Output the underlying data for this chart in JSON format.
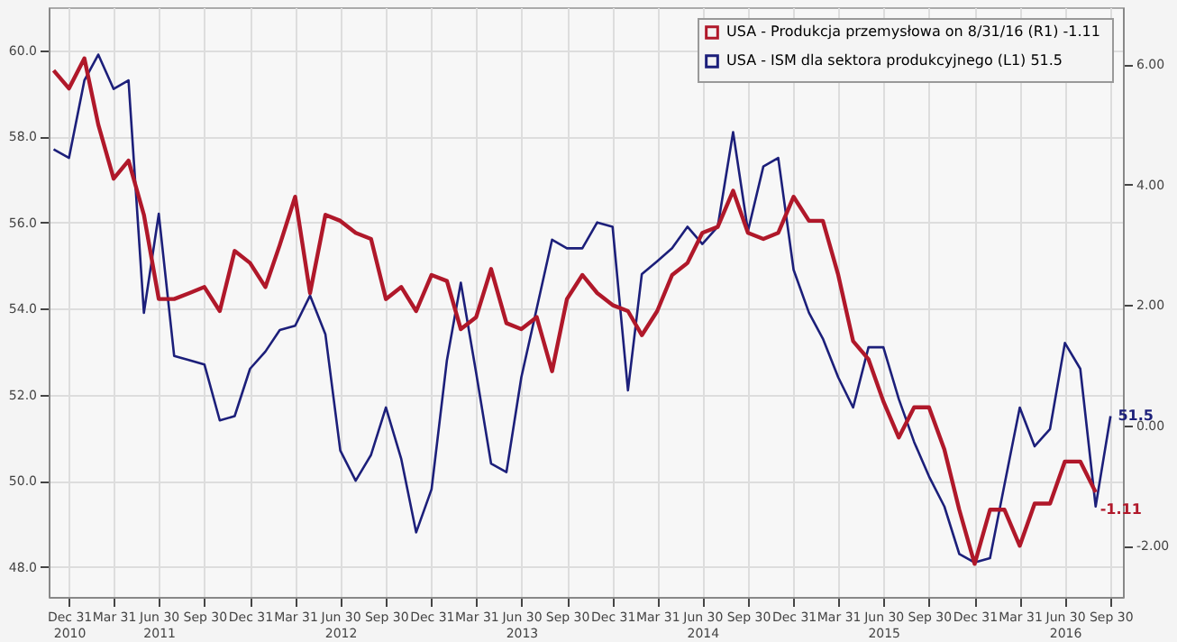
{
  "chart_data": {
    "type": "line",
    "x": [
      "2010-11-30",
      "2010-12-31",
      "2011-01-31",
      "2011-02-28",
      "2011-03-31",
      "2011-04-30",
      "2011-05-31",
      "2011-06-30",
      "2011-07-31",
      "2011-08-31",
      "2011-09-30",
      "2011-10-31",
      "2011-11-30",
      "2011-12-31",
      "2012-01-31",
      "2012-02-29",
      "2012-03-31",
      "2012-04-30",
      "2012-05-31",
      "2012-06-30",
      "2012-07-31",
      "2012-08-31",
      "2012-09-30",
      "2012-10-31",
      "2012-11-30",
      "2012-12-31",
      "2013-01-31",
      "2013-02-28",
      "2013-03-31",
      "2013-04-30",
      "2013-05-31",
      "2013-06-30",
      "2013-07-31",
      "2013-08-31",
      "2013-09-30",
      "2013-10-31",
      "2013-11-30",
      "2013-12-31",
      "2014-01-31",
      "2014-02-28",
      "2014-03-31",
      "2014-04-30",
      "2014-05-31",
      "2014-06-30",
      "2014-07-31",
      "2014-08-31",
      "2014-09-30",
      "2014-10-31",
      "2014-11-30",
      "2014-12-31",
      "2015-01-31",
      "2015-02-28",
      "2015-03-31",
      "2015-04-30",
      "2015-05-31",
      "2015-06-30",
      "2015-07-31",
      "2015-08-31",
      "2015-09-30",
      "2015-10-31",
      "2015-11-30",
      "2015-12-31",
      "2016-01-31",
      "2016-02-29",
      "2016-03-31",
      "2016-04-30",
      "2016-05-31",
      "2016-06-30",
      "2016-07-31",
      "2016-08-31",
      "2016-09-30"
    ],
    "series": [
      {
        "name": "USA - Produkcja przemysłowa on 8/31/16 (R1)  -1.11",
        "color": "#b0182a",
        "axis": "y2",
        "values": [
          5.9,
          5.6,
          6.1,
          5.0,
          4.1,
          4.4,
          3.5,
          2.1,
          2.1,
          2.2,
          2.3,
          1.9,
          2.9,
          2.7,
          2.3,
          3.0,
          3.8,
          2.2,
          3.5,
          3.4,
          3.2,
          3.1,
          2.1,
          2.3,
          1.9,
          2.5,
          2.4,
          1.6,
          1.8,
          2.6,
          1.7,
          1.6,
          1.8,
          0.9,
          2.1,
          2.5,
          2.2,
          2.0,
          1.9,
          1.5,
          1.9,
          2.5,
          2.7,
          3.2,
          3.3,
          3.9,
          3.2,
          3.1,
          3.2,
          3.8,
          3.4,
          3.4,
          2.5,
          1.4,
          1.1,
          0.4,
          -0.2,
          0.3,
          0.3,
          -0.4,
          -1.4,
          -2.3,
          -1.4,
          -1.4,
          -2.0,
          -1.3,
          -1.3,
          -0.6,
          -0.6,
          -1.11,
          null
        ],
        "value_labels": [
          null,
          null,
          null,
          null,
          null,
          null,
          null,
          null,
          null,
          null,
          null,
          null,
          null,
          null,
          null,
          null,
          null,
          null,
          null,
          null,
          null,
          null,
          null,
          null,
          null,
          null,
          null,
          null,
          null,
          null,
          null,
          null,
          null,
          null,
          null,
          null,
          null,
          null,
          null,
          null,
          null,
          null,
          null,
          null,
          null,
          null,
          null,
          null,
          null,
          null,
          null,
          null,
          null,
          null,
          null,
          null,
          null,
          null,
          null,
          null,
          null,
          null,
          null,
          null,
          null,
          null,
          null,
          null,
          null,
          "-1.11",
          null
        ]
      },
      {
        "name": "USA - ISM dla sektora produkcyjnego (L1)  51.5",
        "color": "#1c1f7a",
        "axis": "y",
        "values": [
          57.7,
          57.5,
          59.3,
          59.9,
          59.1,
          59.3,
          53.9,
          56.2,
          52.9,
          52.8,
          52.7,
          51.4,
          51.5,
          52.6,
          53.0,
          53.5,
          53.6,
          54.3,
          53.4,
          50.7,
          50.0,
          50.6,
          51.7,
          50.5,
          48.8,
          49.8,
          52.8,
          54.6,
          52.5,
          50.4,
          50.2,
          52.4,
          54.0,
          55.6,
          55.4,
          55.4,
          56.0,
          55.9,
          52.1,
          54.8,
          55.1,
          55.4,
          55.9,
          55.5,
          55.9,
          58.1,
          55.8,
          57.3,
          57.5,
          54.9,
          53.9,
          53.3,
          52.4,
          51.7,
          53.1,
          53.1,
          51.9,
          50.9,
          50.1,
          49.4,
          48.3,
          48.1,
          48.2,
          49.9,
          51.7,
          50.8,
          51.2,
          53.2,
          52.6,
          49.4,
          51.5
        ],
        "value_labels": [
          null,
          null,
          null,
          null,
          null,
          null,
          null,
          null,
          null,
          null,
          null,
          null,
          null,
          null,
          null,
          null,
          null,
          null,
          null,
          null,
          null,
          null,
          null,
          null,
          null,
          null,
          null,
          null,
          null,
          null,
          null,
          null,
          null,
          null,
          null,
          null,
          null,
          null,
          null,
          null,
          null,
          null,
          null,
          null,
          null,
          null,
          null,
          null,
          null,
          null,
          null,
          null,
          null,
          null,
          null,
          null,
          null,
          null,
          null,
          null,
          null,
          null,
          null,
          null,
          null,
          null,
          null,
          null,
          null,
          null,
          "51.5"
        ]
      }
    ],
    "xlim": [
      "2010-11-20",
      "2016-10-25"
    ],
    "xticks": [
      {
        "value": "2010-12-31",
        "label": "Dec 31\n2010"
      },
      {
        "value": "2011-03-31",
        "label": "Mar 31"
      },
      {
        "value": "2011-06-30",
        "label": "Jun 30\n2011"
      },
      {
        "value": "2011-09-30",
        "label": "Sep 30"
      },
      {
        "value": "2011-12-31",
        "label": "Dec 31"
      },
      {
        "value": "2012-03-31",
        "label": "Mar 31"
      },
      {
        "value": "2012-06-30",
        "label": "Jun 30\n2012"
      },
      {
        "value": "2012-09-30",
        "label": "Sep 30"
      },
      {
        "value": "2012-12-31",
        "label": "Dec 31"
      },
      {
        "value": "2013-03-31",
        "label": "Mar 31"
      },
      {
        "value": "2013-06-30",
        "label": "Jun 30\n2013"
      },
      {
        "value": "2013-09-30",
        "label": "Sep 30"
      },
      {
        "value": "2013-12-31",
        "label": "Dec 31"
      },
      {
        "value": "2014-03-31",
        "label": "Mar 31"
      },
      {
        "value": "2014-06-30",
        "label": "Jun 30\n2014"
      },
      {
        "value": "2014-09-30",
        "label": "Sep 30"
      },
      {
        "value": "2014-12-31",
        "label": "Dec 31"
      },
      {
        "value": "2015-03-31",
        "label": "Mar 31"
      },
      {
        "value": "2015-06-30",
        "label": "Jun 30\n2015"
      },
      {
        "value": "2015-09-30",
        "label": "Sep 30"
      },
      {
        "value": "2015-12-31",
        "label": "Dec 31"
      },
      {
        "value": "2016-03-31",
        "label": "Mar 31"
      },
      {
        "value": "2016-06-30",
        "label": "Jun 30\n2016"
      },
      {
        "value": "2016-09-30",
        "label": "Sep 30"
      }
    ],
    "ylim": [
      47.3,
      61.0
    ],
    "yticks": [
      {
        "value": 48,
        "label": "48.0"
      },
      {
        "value": 50,
        "label": "50.0"
      },
      {
        "value": 52,
        "label": "52.0"
      },
      {
        "value": 54,
        "label": "54.0"
      },
      {
        "value": 56,
        "label": "56.0"
      },
      {
        "value": 58,
        "label": "58.0"
      },
      {
        "value": 60,
        "label": "60.0"
      }
    ],
    "y2lim": [
      -2.85,
      6.95
    ],
    "y2ticks": [
      {
        "value": -2,
        "label": "-2.00"
      },
      {
        "value": 0,
        "label": "0.00"
      },
      {
        "value": 2,
        "label": "2.00"
      },
      {
        "value": 4,
        "label": "4.00"
      },
      {
        "value": 6,
        "label": "6.00"
      }
    ],
    "grid": true,
    "legend": "top right",
    "marker": "none",
    "line_style": "solid"
  }
}
